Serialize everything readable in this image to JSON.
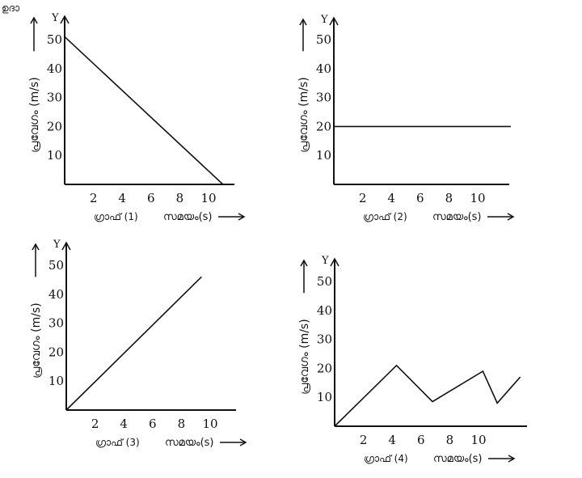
{
  "corner_text": "ഉദാ",
  "chart_data": [
    {
      "type": "line",
      "caption": "ഗ്രാഫ് (1)",
      "xlabel": "സമയം(s)",
      "ylabel": "പ്രവേഗം (m/s)",
      "y_axis_letter": "Y",
      "xlim": [
        0,
        12.5
      ],
      "ylim": [
        0,
        56
      ],
      "x_ticks": [
        2,
        4,
        6,
        8,
        10
      ],
      "y_ticks": [
        10,
        20,
        30,
        40,
        50
      ],
      "series": [
        {
          "x": [
            0,
            11
          ],
          "y": [
            51,
            0
          ]
        }
      ]
    },
    {
      "type": "line",
      "caption": "ഗ്രാഫ് (2)",
      "xlabel": "സമയം(s)",
      "ylabel": "പ്രവേഗം (m/s)",
      "y_axis_letter": "Y",
      "xlim": [
        0,
        12.5
      ],
      "ylim": [
        0,
        56
      ],
      "x_ticks": [
        2,
        4,
        6,
        8,
        10
      ],
      "y_ticks": [
        10,
        20,
        30,
        40,
        50
      ],
      "series": [
        {
          "x": [
            0,
            12.3
          ],
          "y": [
            20,
            20
          ]
        }
      ]
    },
    {
      "type": "line",
      "caption": "ഗ്രാഫ് (3)",
      "xlabel": "സമയം(s)",
      "ylabel": "പ്രവേഗം (m/s)",
      "y_axis_letter": "Y",
      "xlim": [
        0,
        12.5
      ],
      "ylim": [
        0,
        56
      ],
      "x_ticks": [
        2,
        4,
        6,
        8,
        10
      ],
      "y_ticks": [
        10,
        20,
        30,
        40,
        50
      ],
      "series": [
        {
          "x": [
            0,
            9.4
          ],
          "y": [
            0,
            46
          ]
        }
      ]
    },
    {
      "type": "line",
      "caption": "ഗ്രാഫ് (4)",
      "xlabel": "സമയം(s)",
      "ylabel": "പ്രവേഗം (m/s)",
      "y_axis_letter": "Y",
      "xlim": [
        0,
        12.5
      ],
      "ylim": [
        0,
        56
      ],
      "x_ticks": [
        2,
        4,
        6,
        8,
        10
      ],
      "y_ticks": [
        10,
        20,
        30,
        40,
        50
      ],
      "series": [
        {
          "x": [
            0,
            4.3,
            6.8,
            10.3,
            11.3,
            12.9
          ],
          "y": [
            0,
            21,
            8.5,
            19,
            8,
            17
          ]
        }
      ]
    }
  ]
}
